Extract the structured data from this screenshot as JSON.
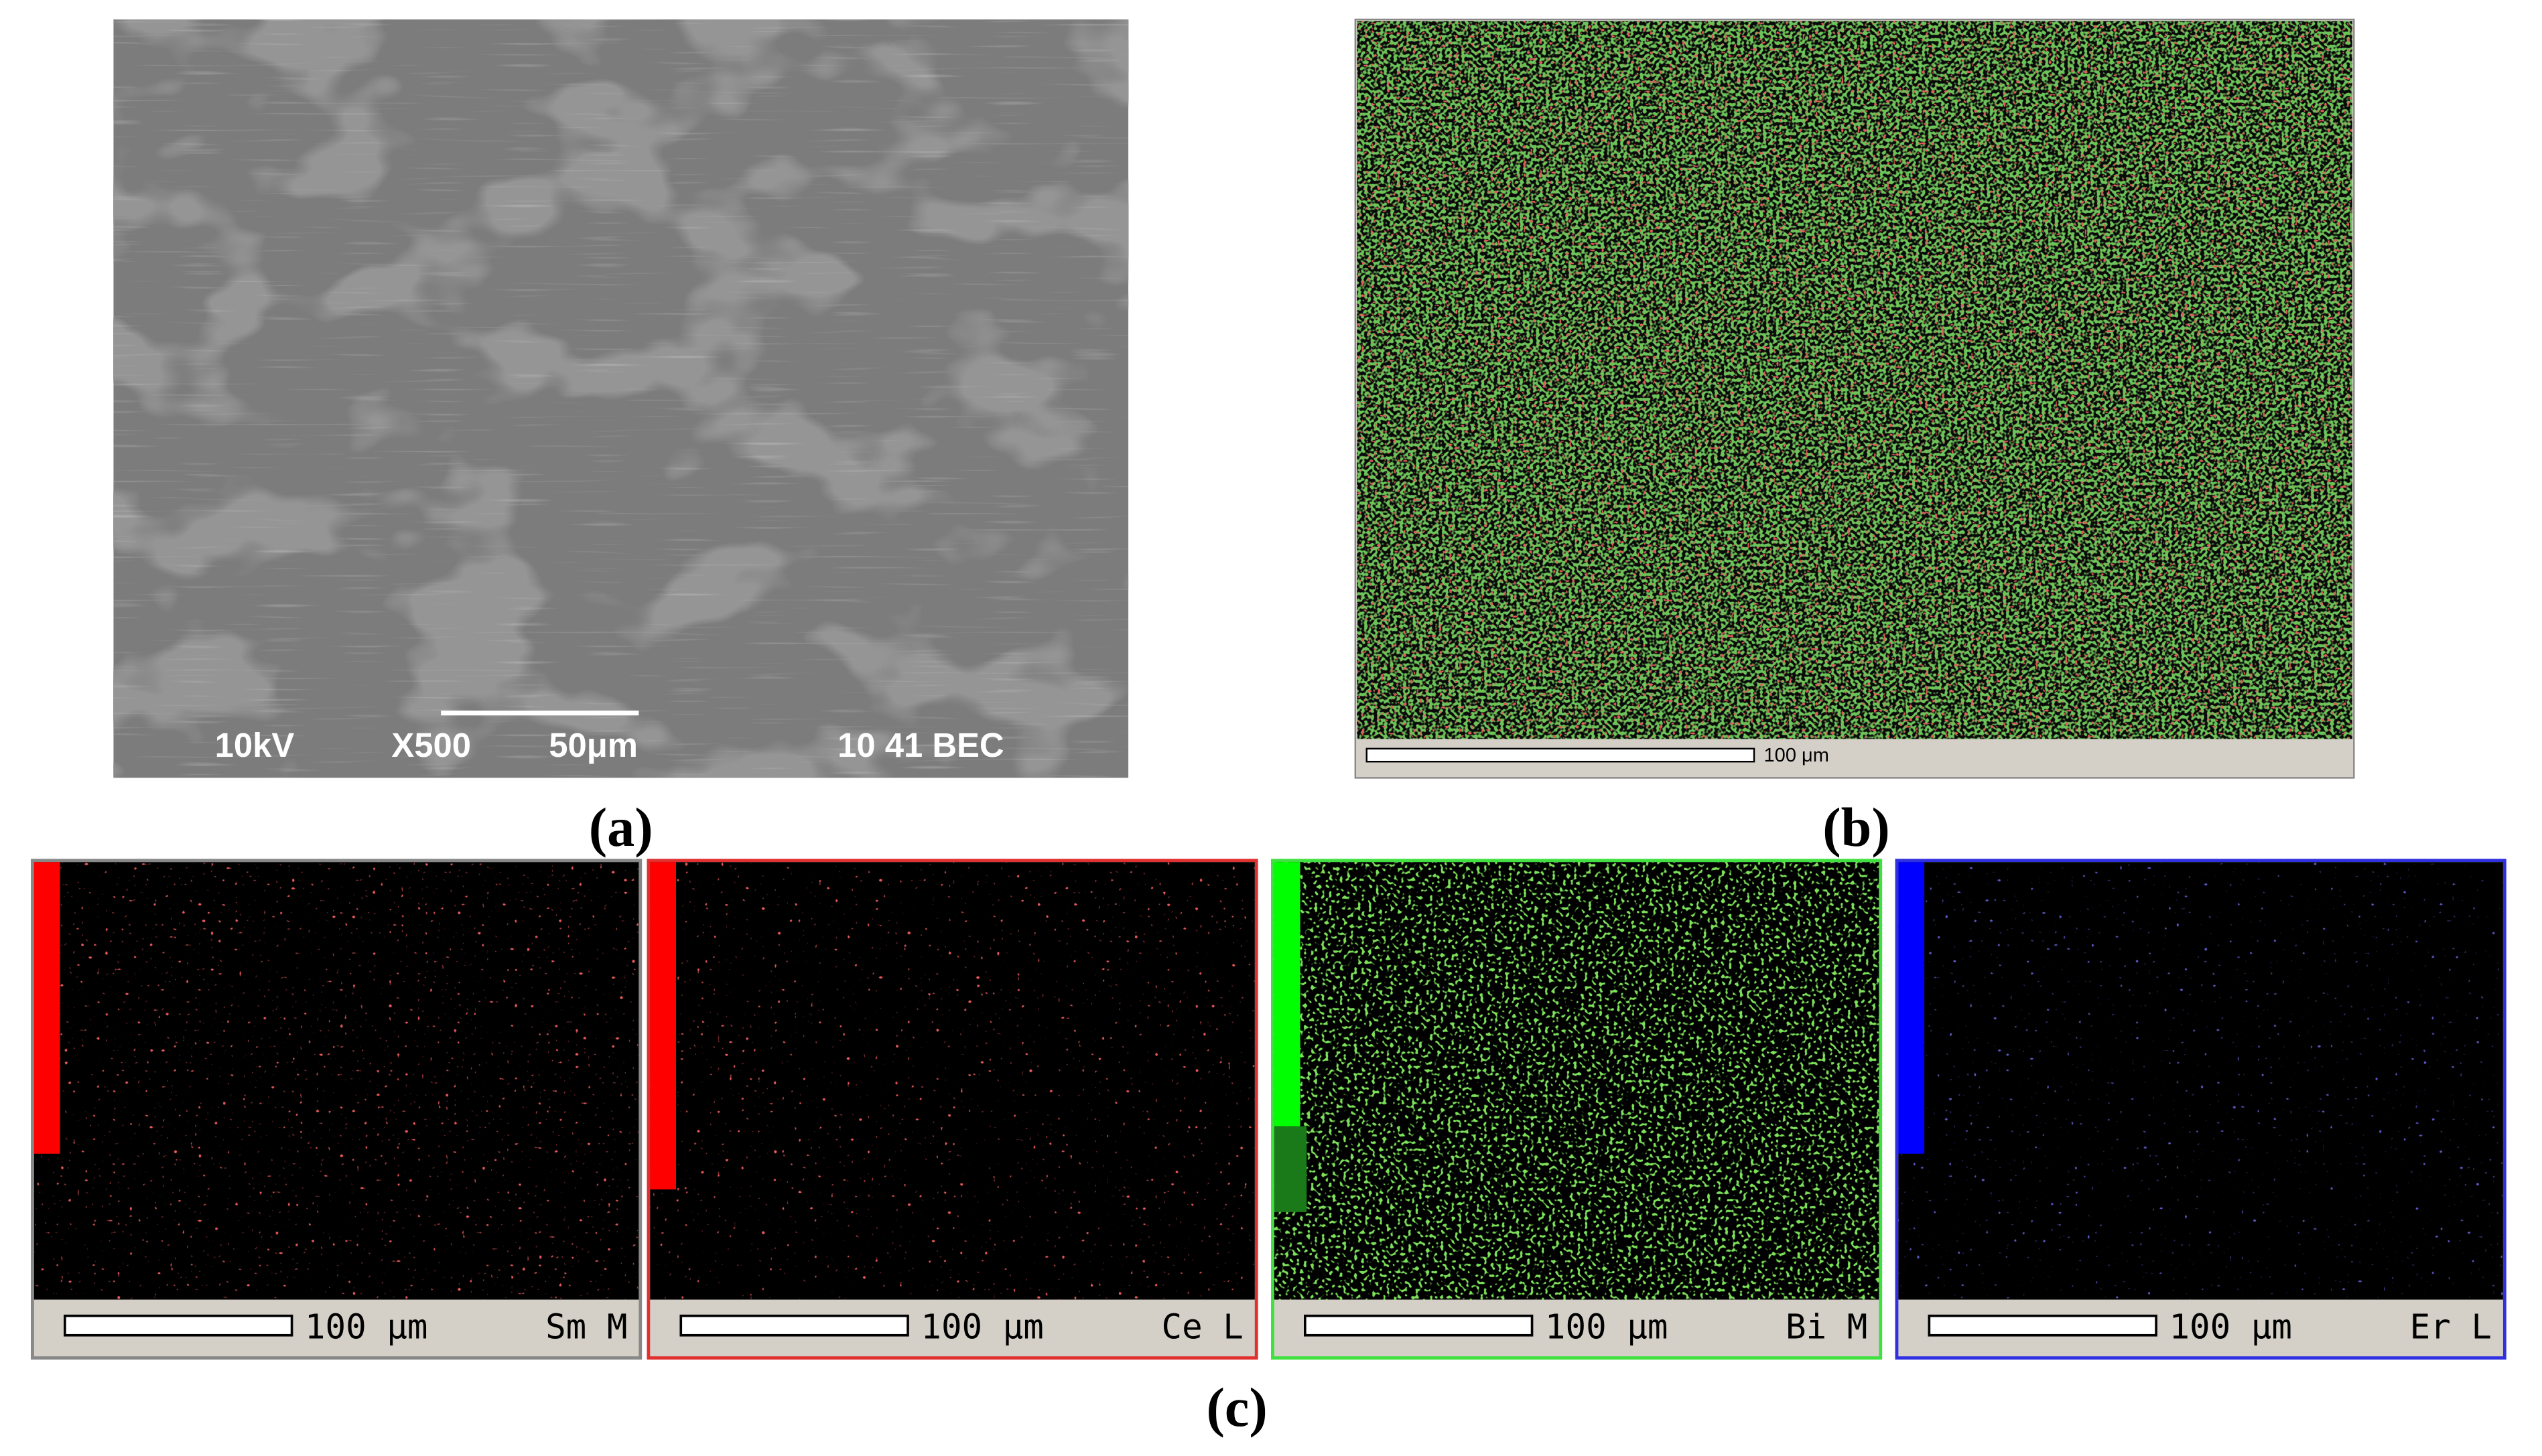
{
  "panel_a": {
    "voltage": "10kV",
    "magnification": "X500",
    "scale": "50μm",
    "info": "10 41 BEC",
    "label": "(a)"
  },
  "panel_b": {
    "scale": "100 μm",
    "label": "(b)"
  },
  "panel_c": {
    "label": "(c)",
    "maps": [
      {
        "scale": "100 μm",
        "element": "Sm M"
      },
      {
        "scale": "100 μm",
        "element": "Ce L"
      },
      {
        "scale": "100 μm",
        "element": "Bi M"
      },
      {
        "scale": "100 μm",
        "element": "Er L"
      }
    ]
  }
}
